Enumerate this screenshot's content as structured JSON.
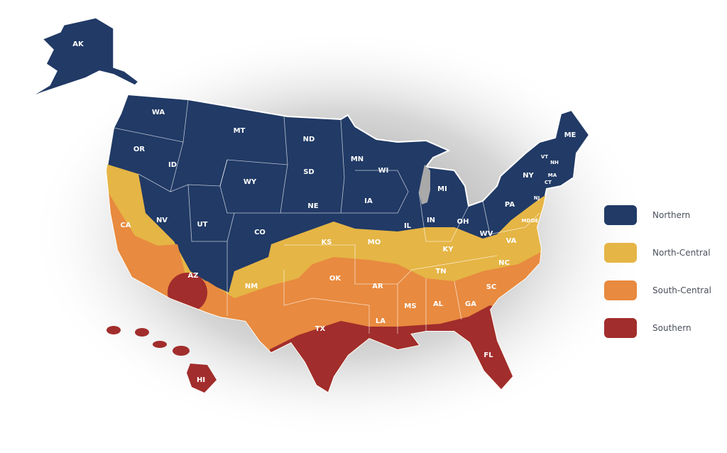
{
  "colors": {
    "northern": "#213a66",
    "north_central": "#e5b545",
    "south_central": "#e88a3f",
    "southern": "#a12d2c",
    "lake": "#a9a9a9"
  },
  "legend": [
    {
      "label": "Northern",
      "color": "#213a66"
    },
    {
      "label": "North-Central",
      "color": "#e5b545"
    },
    {
      "label": "South-Central",
      "color": "#e88a3f"
    },
    {
      "label": "Southern",
      "color": "#a12d2c"
    }
  ],
  "states": [
    "AK",
    "WA",
    "OR",
    "ID",
    "MT",
    "ND",
    "MN",
    "WI",
    "MI",
    "SD",
    "WY",
    "NE",
    "IA",
    "IL",
    "IN",
    "OH",
    "PA",
    "NY",
    "ME",
    "VT",
    "NH",
    "MA",
    "CT",
    "NJ",
    "NV",
    "UT",
    "CO",
    "KS",
    "MO",
    "KY",
    "WV",
    "VA",
    "MD",
    "DE",
    "CA",
    "AZ",
    "NM",
    "OK",
    "AR",
    "TN",
    "NC",
    "SC",
    "GA",
    "AL",
    "MS",
    "LA",
    "TX",
    "FL",
    "HI"
  ]
}
